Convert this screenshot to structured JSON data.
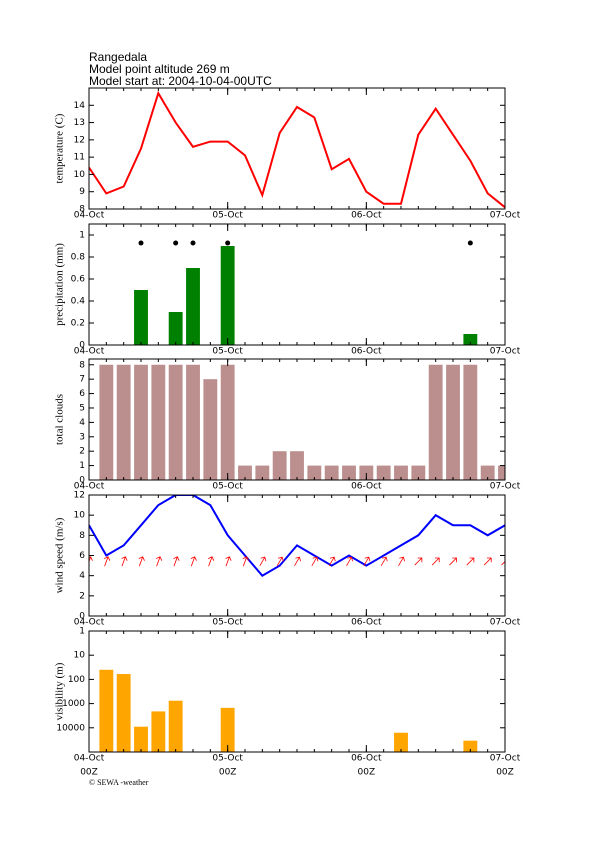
{
  "header": [
    "Rangedala",
    "Model point altitude  269 m",
    "Model start at: 2004-10-04-00UTC"
  ],
  "footer": "© SEWA -weather",
  "chart_data": [
    {
      "type": "line",
      "ylabel": "temperature (C)",
      "color": "#ff0000",
      "x": [
        0,
        3,
        6,
        9,
        12,
        15,
        18,
        21,
        24,
        27,
        30,
        33,
        36,
        39,
        42,
        45,
        48,
        51,
        54,
        57,
        60,
        63,
        66,
        69,
        72
      ],
      "xlim": [
        0,
        72
      ],
      "xticks": [
        {
          "value": 0,
          "label": "04-Oct"
        },
        {
          "value": 24,
          "label": "05-Oct"
        },
        {
          "value": 48,
          "label": "06-Oct"
        },
        {
          "value": 72,
          "label": "07-Oct"
        }
      ],
      "ylim": [
        8,
        15
      ],
      "yticks": [
        8,
        9,
        10,
        11,
        12,
        13,
        14
      ],
      "values": [
        10.4,
        8.9,
        9.3,
        11.5,
        14.7,
        13,
        11.6,
        11.9,
        11.9,
        11.1,
        8.8,
        12.4,
        13.9,
        13.3,
        10.3,
        10.9,
        9,
        8.3,
        8.3,
        12.3,
        13.8,
        12.3,
        10.8,
        8.9,
        8.1
      ]
    },
    {
      "type": "bar",
      "ylabel": "precipitation (mm)",
      "color": "#008000",
      "marker_color": "#000000",
      "x": [
        0,
        3,
        6,
        9,
        12,
        15,
        18,
        21,
        24,
        27,
        30,
        33,
        36,
        39,
        42,
        45,
        48,
        51,
        54,
        57,
        60,
        63,
        66,
        69,
        72
      ],
      "xlim": [
        0,
        72
      ],
      "xticks": [
        {
          "value": 0,
          "label": "04-Oct"
        },
        {
          "value": 24,
          "label": "05-Oct"
        },
        {
          "value": 48,
          "label": "06-Oct"
        },
        {
          "value": 72,
          "label": "07-Oct"
        }
      ],
      "ylim": [
        0,
        1.1
      ],
      "yticks": [
        0,
        0.2,
        0.4,
        0.6,
        0.8,
        1
      ],
      "values": [
        0,
        0,
        0,
        0.5,
        0,
        0.3,
        0.7,
        0,
        0.9,
        0,
        0,
        0,
        0,
        0,
        0,
        0,
        0,
        0,
        0,
        0,
        0,
        0,
        0.1,
        0,
        0
      ]
    },
    {
      "type": "bar",
      "ylabel": "total clouds",
      "color": "#bc8f8f",
      "x": [
        0,
        3,
        6,
        9,
        12,
        15,
        18,
        21,
        24,
        27,
        30,
        33,
        36,
        39,
        42,
        45,
        48,
        51,
        54,
        57,
        60,
        63,
        66,
        69,
        72
      ],
      "xlim": [
        0,
        72
      ],
      "xticks": [
        {
          "value": 0,
          "label": "04-Oct"
        },
        {
          "value": 24,
          "label": "05-Oct"
        },
        {
          "value": 48,
          "label": "06-Oct"
        },
        {
          "value": 72,
          "label": "07-Oct"
        }
      ],
      "ylim": [
        0,
        8.4
      ],
      "yticks": [
        0,
        1,
        2,
        3,
        4,
        5,
        6,
        7,
        8
      ],
      "values": [
        null,
        8,
        8,
        8,
        8,
        8,
        8,
        7,
        8,
        1,
        1,
        2,
        2,
        1,
        1,
        1,
        1,
        1,
        1,
        1,
        8,
        8,
        8,
        1,
        1
      ]
    },
    {
      "type": "line",
      "ylabel": "wind speed (m/s)",
      "color": "#0000ff",
      "arrow_color": "#ff0000",
      "x": [
        0,
        3,
        6,
        9,
        12,
        15,
        18,
        21,
        24,
        27,
        30,
        33,
        36,
        39,
        42,
        45,
        48,
        51,
        54,
        57,
        60,
        63,
        66,
        69,
        72
      ],
      "xlim": [
        0,
        72
      ],
      "xticks": [
        {
          "value": 0,
          "label": "04-Oct"
        },
        {
          "value": 24,
          "label": "05-Oct"
        },
        {
          "value": 48,
          "label": "06-Oct"
        },
        {
          "value": 72,
          "label": "07-Oct"
        }
      ],
      "ylim": [
        0,
        12
      ],
      "yticks": [
        0,
        2,
        4,
        6,
        8,
        10,
        12
      ],
      "values": [
        9,
        6,
        7,
        9,
        11,
        12,
        12,
        11,
        8,
        6,
        4,
        5,
        7,
        6,
        5,
        6,
        5,
        6,
        7,
        8,
        10,
        9,
        9,
        8,
        9
      ],
      "wind_direction": [
        20,
        20,
        20,
        20,
        20,
        20,
        20,
        20,
        20,
        20,
        30,
        30,
        30,
        30,
        30,
        30,
        30,
        30,
        30,
        45,
        45,
        45,
        45,
        45,
        45
      ]
    },
    {
      "type": "bar",
      "ylabel": "visibility (m)",
      "color": "#ffa500",
      "log": true,
      "reversed": true,
      "x": [
        0,
        3,
        6,
        9,
        12,
        15,
        18,
        21,
        24,
        27,
        30,
        33,
        36,
        39,
        42,
        45,
        48,
        51,
        54,
        57,
        60,
        63,
        66,
        69,
        72
      ],
      "xlim": [
        0,
        72
      ],
      "xticks": [
        {
          "value": 0,
          "label": "04-Oct"
        },
        {
          "value": 24,
          "label": "05-Oct"
        },
        {
          "value": 48,
          "label": "06-Oct"
        },
        {
          "value": 72,
          "label": "07-Oct"
        }
      ],
      "xtick_sublabels": [
        "00Z",
        "00Z",
        "00Z",
        "00Z"
      ],
      "ylim": [
        1,
        100000
      ],
      "yticks": [
        1,
        10,
        100,
        1000,
        10000
      ],
      "values": [
        null,
        40,
        60,
        9000,
        2100,
        760,
        null,
        null,
        1500,
        null,
        null,
        null,
        null,
        null,
        null,
        null,
        null,
        null,
        16000,
        null,
        null,
        null,
        34000,
        null,
        null
      ]
    }
  ]
}
